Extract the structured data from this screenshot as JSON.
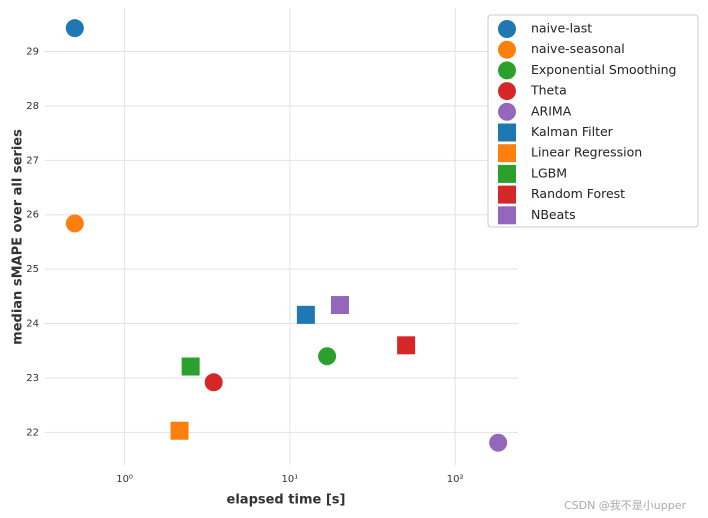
{
  "chart_data": {
    "type": "scatter",
    "xlabel": "elapsed time [s]",
    "ylabel": "median sMAPE over all series",
    "xscale": "log",
    "xlim": [
      0.33,
      240
    ],
    "ylim": [
      21.4,
      29.8
    ],
    "xticks": [
      {
        "value": 1,
        "label": "10⁰"
      },
      {
        "value": 10,
        "label": "10¹"
      },
      {
        "value": 100,
        "label": "10²"
      }
    ],
    "yticks": [
      22,
      23,
      24,
      25,
      26,
      27,
      28,
      29
    ],
    "grid": true,
    "legend": "outside-right",
    "series": [
      {
        "name": "naive-last",
        "color": "#1f77b4",
        "marker": "circle",
        "x": [
          0.5
        ],
        "values": [
          29.43
        ]
      },
      {
        "name": "naive-seasonal",
        "color": "#ff7f0e",
        "marker": "circle",
        "x": [
          0.5
        ],
        "values": [
          25.84
        ]
      },
      {
        "name": "Exponential Smoothing",
        "color": "#2ca02c",
        "marker": "circle",
        "x": [
          16.8
        ],
        "values": [
          23.4
        ]
      },
      {
        "name": "Theta",
        "color": "#d62728",
        "marker": "circle",
        "x": [
          3.46
        ],
        "values": [
          22.92
        ]
      },
      {
        "name": "ARIMA",
        "color": "#9467bd",
        "marker": "circle",
        "x": [
          182
        ],
        "values": [
          21.81
        ]
      },
      {
        "name": "Kalman Filter",
        "color": "#1f77b4",
        "marker": "square",
        "x": [
          12.5
        ],
        "values": [
          24.16
        ]
      },
      {
        "name": "Linear Regression",
        "color": "#ff7f0e",
        "marker": "square",
        "x": [
          2.15
        ],
        "values": [
          22.03
        ]
      },
      {
        "name": "LGBM",
        "color": "#2ca02c",
        "marker": "square",
        "x": [
          2.51
        ],
        "values": [
          23.21
        ]
      },
      {
        "name": "Random Forest",
        "color": "#d62728",
        "marker": "square",
        "x": [
          50.5
        ],
        "values": [
          23.6
        ]
      },
      {
        "name": "NBeats",
        "color": "#9467bd",
        "marker": "square",
        "x": [
          20.1
        ],
        "values": [
          24.34
        ]
      }
    ]
  },
  "watermark": "CSDN @我不是小upper"
}
